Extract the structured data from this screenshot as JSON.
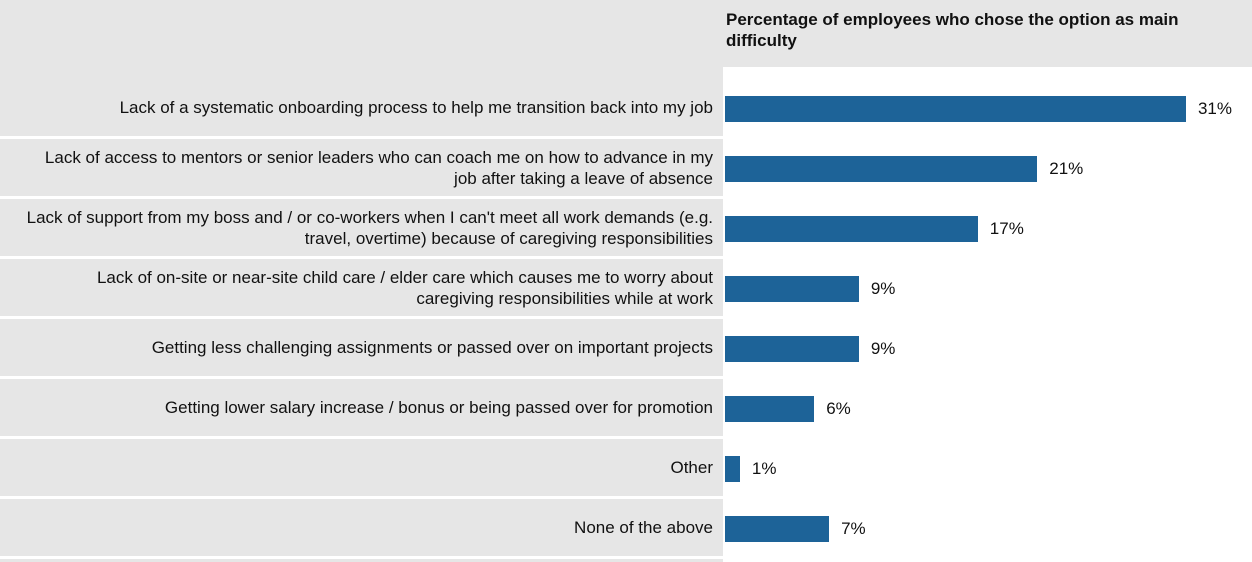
{
  "chart_data": {
    "type": "bar",
    "orientation": "horizontal",
    "title": "Percentage of employees who chose the option as main difficulty",
    "categories": [
      "Lack of a systematic onboarding process to help me transition back into my job",
      "Lack of access to mentors or senior leaders who can coach me on how to advance in my job after taking a leave of absence",
      "Lack of support from my boss and / or co-workers when I can't meet all work demands (e.g. travel, overtime) because of caregiving responsibilities",
      "Lack of on-site or near-site child care / elder care which causes me to worry about caregiving responsibilities while at work",
      "Getting less challenging assignments or passed over on important projects",
      "Getting lower salary increase / bonus or being passed over for promotion",
      "Other",
      "None of the above"
    ],
    "values": [
      31,
      21,
      17,
      9,
      9,
      6,
      1,
      7
    ],
    "value_labels": [
      "31%",
      "21%",
      "17%",
      "9%",
      "9%",
      "6%",
      "1%",
      "7%"
    ],
    "color": "#1d6398"
  }
}
